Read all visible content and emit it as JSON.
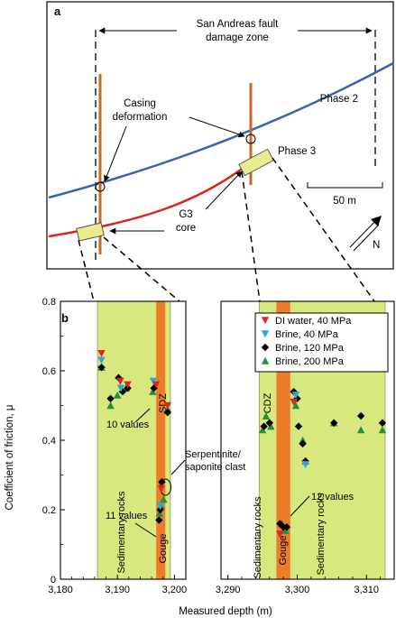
{
  "panel_a": {
    "label": "a",
    "zone_label_line1": "San Andreas fault",
    "zone_label_line2": "damage zone",
    "phase2": "Phase 2",
    "phase3": "Phase 3",
    "casing_line1": "Casing",
    "casing_line2": "deformation",
    "g3_line1": "G3",
    "g3_line2": "core",
    "scale_label": "50 m",
    "north_label": "N",
    "colors": {
      "phase2": "#3563b0",
      "phase3": "#d9261c",
      "casing": "#c8692a",
      "core": "#e8ec8c"
    }
  },
  "panel_b": {
    "label": "b",
    "ylabel": "Coefficient of friction, μ",
    "xlabel": "Measured depth (m)",
    "legend": [
      {
        "label": "DI water, 40 MPa",
        "marker": "tri-down",
        "color": "#e02424"
      },
      {
        "label": "Brine, 40 MPa",
        "marker": "tri-down",
        "color": "#29a8df"
      },
      {
        "label": "Brine, 120 MPa",
        "marker": "diamond",
        "color": "#000000"
      },
      {
        "label": "Brine, 200 MPa",
        "marker": "tri-up",
        "color": "#23913a"
      }
    ],
    "annotations": {
      "sdz": "SDZ",
      "cdz": "CDZ",
      "ten_values": "10 values",
      "eleven_values": "11 values",
      "twelve_values": "12 values",
      "serp_line1": "Serpentinite/",
      "serp_line2": "saponite clast",
      "sed_left": "Sedimentary rocks",
      "gouge_left": "Gouge",
      "sed_right1": "Sedimentary rocks",
      "gouge_right": "Gouge",
      "sed_right2": "Sedimentary rocks"
    },
    "colors": {
      "sediment": "#d9e77f",
      "gouge": "#ee7d2b"
    }
  },
  "chart_data": {
    "type": "scatter",
    "ylim": [
      0,
      0.8
    ],
    "yticks": [
      "0",
      "0.2",
      "0.4",
      "0.6",
      "0.8"
    ],
    "subplots": [
      {
        "xlim": [
          3180,
          3202
        ],
        "xticks": [
          "3,180",
          "3,190",
          "3,200"
        ],
        "bands": [
          {
            "kind": "sediment",
            "from": 3186.5,
            "to": 3199.3
          },
          {
            "kind": "gouge",
            "from": 3196.8,
            "to": 3198.4
          }
        ],
        "series": [
          {
            "name": "DI water, 40 MPa",
            "points": [
              [
                3187.2,
                0.65
              ],
              [
                3190.5,
                0.57
              ],
              [
                3191.8,
                0.56
              ],
              [
                3196.8,
                0.56
              ],
              [
                3197.7,
                0.26
              ],
              [
                3198.8,
                0.5
              ]
            ]
          },
          {
            "name": "Brine, 40 MPa",
            "points": [
              [
                3187.2,
                0.63
              ],
              [
                3190.6,
                0.55
              ],
              [
                3196.3,
                0.57
              ],
              [
                3197.5,
                0.21
              ]
            ]
          },
          {
            "name": "Brine, 120 MPa",
            "points": [
              [
                3187.2,
                0.61
              ],
              [
                3188.8,
                0.52
              ],
              [
                3190.2,
                0.58
              ],
              [
                3190.9,
                0.54
              ],
              [
                3191.8,
                0.55
              ],
              [
                3196.4,
                0.55
              ],
              [
                3197.3,
                0.17
              ],
              [
                3197.5,
                0.2
              ],
              [
                3197.8,
                0.28
              ],
              [
                3198.8,
                0.48
              ]
            ]
          },
          {
            "name": "Brine, 200 MPa",
            "points": [
              [
                3187.2,
                0.61
              ],
              [
                3188.8,
                0.5
              ],
              [
                3190.0,
                0.53
              ],
              [
                3191.5,
                0.55
              ],
              [
                3196.2,
                0.54
              ],
              [
                3197.4,
                0.19
              ],
              [
                3197.7,
                0.21
              ],
              [
                3198.1,
                0.23
              ],
              [
                3198.8,
                0.49
              ]
            ]
          }
        ]
      },
      {
        "xlim": [
          3289,
          3314
        ],
        "xticks": [
          "3,290",
          "3,300",
          "3,310"
        ],
        "bands": [
          {
            "kind": "sediment",
            "from": 3294.5,
            "to": 3312.7
          },
          {
            "kind": "gouge",
            "from": 3297.0,
            "to": 3299.0
          }
        ],
        "series": [
          {
            "name": "DI water, 40 MPa",
            "points": [
              [
                3297.5,
                0.13
              ],
              [
                3299.5,
                0.51
              ]
            ]
          },
          {
            "name": "Brine, 40 MPa",
            "points": [
              [
                3299.8,
                0.53
              ],
              [
                3301.2,
                0.33
              ]
            ]
          },
          {
            "name": "Brine, 120 MPa",
            "points": [
              [
                3295.2,
                0.44
              ],
              [
                3296.0,
                0.45
              ],
              [
                3297.5,
                0.16
              ],
              [
                3298.0,
                0.15
              ],
              [
                3298.5,
                0.15
              ],
              [
                3299.5,
                0.54
              ],
              [
                3300.0,
                0.52
              ],
              [
                3300.2,
                0.44
              ],
              [
                3300.8,
                0.39
              ],
              [
                3301.2,
                0.34
              ],
              [
                3305.3,
                0.45
              ],
              [
                3309.2,
                0.47
              ],
              [
                3312.3,
                0.45
              ]
            ]
          },
          {
            "name": "Brine, 200 MPa",
            "points": [
              [
                3295.0,
                0.43
              ],
              [
                3295.5,
                0.47
              ],
              [
                3296.2,
                0.44
              ],
              [
                3297.8,
                0.16
              ],
              [
                3298.3,
                0.14
              ],
              [
                3299.8,
                0.5
              ],
              [
                3300.8,
                0.4
              ],
              [
                3301.2,
                0.34
              ],
              [
                3305.3,
                0.45
              ],
              [
                3309.2,
                0.43
              ],
              [
                3312.3,
                0.43
              ]
            ]
          }
        ]
      }
    ]
  }
}
